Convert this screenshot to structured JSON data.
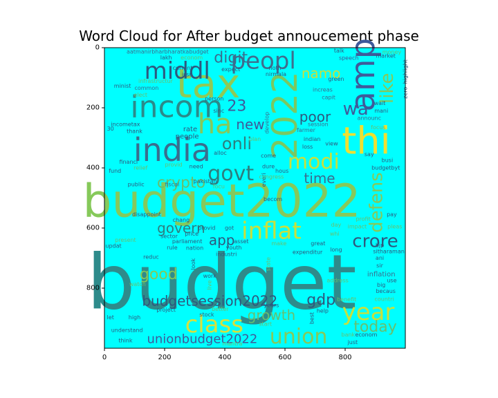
{
  "chart_data": {
    "type": "wordcloud",
    "title": "Word Cloud for After budget annoucement phase",
    "background_color": "#00ffff",
    "xlim": [
      0,
      1000
    ],
    "ylim": [
      1000,
      0
    ],
    "x_ticks": [
      0,
      200,
      400,
      600,
      800
    ],
    "y_ticks": [
      0,
      200,
      400,
      600,
      800
    ],
    "words": [
      {
        "text": "budget",
        "x": 390,
        "y": 780,
        "size": 110,
        "color": "#2e8b8b"
      },
      {
        "text": "budget2022",
        "x": 390,
        "y": 510,
        "size": 66,
        "color": "#86c95a"
      },
      {
        "text": "tax",
        "x": 345,
        "y": 120,
        "size": 58,
        "color": "#8fca55"
      },
      {
        "text": "thi",
        "x": 870,
        "y": 310,
        "size": 54,
        "color": "#f0e030"
      },
      {
        "text": "2022",
        "x": 600,
        "y": 225,
        "size": 50,
        "color": "#7ac860",
        "rotate": -90
      },
      {
        "text": "amp",
        "x": 860,
        "y": 90,
        "size": 48,
        "color": "#3f5a9a",
        "rotate": -90
      },
      {
        "text": "india",
        "x": 225,
        "y": 340,
        "size": 46,
        "color": "#3a6d8e"
      },
      {
        "text": "incom",
        "x": 240,
        "y": 198,
        "size": 44,
        "color": "#2b8a8a"
      },
      {
        "text": "ha",
        "x": 367,
        "y": 255,
        "size": 40,
        "color": "#86c95a"
      },
      {
        "text": "peopl",
        "x": 528,
        "y": 45,
        "size": 34,
        "color": "#3f6e8e"
      },
      {
        "text": "middl",
        "x": 242,
        "y": 78,
        "size": 34,
        "color": "#2e587e"
      },
      {
        "text": "govt",
        "x": 420,
        "y": 420,
        "size": 30,
        "color": "#2e7e7e"
      },
      {
        "text": "modi",
        "x": 695,
        "y": 380,
        "size": 30,
        "color": "#c8e03c"
      },
      {
        "text": "inflat",
        "x": 555,
        "y": 610,
        "size": 34,
        "color": "#c8e03c"
      },
      {
        "text": "year",
        "x": 877,
        "y": 880,
        "size": 34,
        "color": "#c8e03c"
      },
      {
        "text": "class",
        "x": 365,
        "y": 922,
        "size": 34,
        "color": "#d8e03c"
      },
      {
        "text": "union",
        "x": 645,
        "y": 962,
        "size": 30,
        "color": "#86c95a"
      },
      {
        "text": "wa",
        "x": 835,
        "y": 205,
        "size": 26,
        "color": "#3f5a9a"
      },
      {
        "text": "like",
        "x": 940,
        "y": 135,
        "size": 26,
        "color": "#86c95a",
        "rotate": -90
      },
      {
        "text": "defens",
        "x": 905,
        "y": 515,
        "size": 26,
        "color": "#86c95a",
        "rotate": -90
      },
      {
        "text": "crore",
        "x": 900,
        "y": 645,
        "size": 26,
        "color": "#2e587e"
      },
      {
        "text": "today",
        "x": 900,
        "y": 930,
        "size": 22,
        "color": "#66c070"
      },
      {
        "text": "onli",
        "x": 440,
        "y": 320,
        "size": 24,
        "color": "#2e7e7e"
      },
      {
        "text": "digit",
        "x": 420,
        "y": 35,
        "size": 22,
        "color": "#3a6d8e"
      },
      {
        "text": "namo",
        "x": 720,
        "y": 85,
        "size": 20,
        "color": "#c8e03c"
      },
      {
        "text": "poor",
        "x": 700,
        "y": 230,
        "size": 20,
        "color": "#2e587e"
      },
      {
        "text": "time",
        "x": 715,
        "y": 435,
        "size": 20,
        "color": "#3a6d8e"
      },
      {
        "text": "new",
        "x": 485,
        "y": 255,
        "size": 20,
        "color": "#3f5a9a"
      },
      {
        "text": "23",
        "x": 440,
        "y": 195,
        "size": 22,
        "color": "#3f5a9a"
      },
      {
        "text": "crypto",
        "x": 255,
        "y": 450,
        "size": 22,
        "color": "#66c070"
      },
      {
        "text": "govern",
        "x": 255,
        "y": 600,
        "size": 20,
        "color": "#2e7e7e"
      },
      {
        "text": "app",
        "x": 390,
        "y": 640,
        "size": 20,
        "color": "#2e587e"
      },
      {
        "text": "good",
        "x": 180,
        "y": 755,
        "size": 22,
        "color": "#86c95a"
      },
      {
        "text": "growth",
        "x": 555,
        "y": 890,
        "size": 20,
        "color": "#66c070"
      },
      {
        "text": "gdp",
        "x": 720,
        "y": 840,
        "size": 22,
        "color": "#2e587e"
      },
      {
        "text": "budgetsession2022",
        "x": 350,
        "y": 843,
        "size": 20,
        "color": "#2e587e"
      },
      {
        "text": "unionbudget2022",
        "x": 325,
        "y": 970,
        "size": 18,
        "color": "#3f5a9a"
      },
      {
        "text": "aatmanirbharbharatkabudget",
        "x": 210,
        "y": 14,
        "size": 8,
        "color": "#3a6d8e"
      },
      {
        "text": "speech",
        "x": 812,
        "y": 35,
        "size": 8,
        "color": "#3f5a9a"
      },
      {
        "text": "money",
        "x": 955,
        "y": 15,
        "size": 8,
        "color": "#66c070"
      },
      {
        "text": "infrastructur",
        "x": 170,
        "y": 112,
        "size": 8,
        "color": "#66c070"
      },
      {
        "text": "minist",
        "x": 60,
        "y": 128,
        "size": 8,
        "color": "#2e587e"
      },
      {
        "text": "common",
        "x": 140,
        "y": 135,
        "size": 8,
        "color": "#3a6d8e"
      },
      {
        "text": "elect",
        "x": 120,
        "y": 158,
        "size": 8,
        "color": "#66c070"
      },
      {
        "text": "lakh",
        "x": 205,
        "y": 33,
        "size": 8,
        "color": "#2e587e"
      },
      {
        "text": "current",
        "x": 260,
        "y": 68,
        "size": 8,
        "color": "#2e587e"
      },
      {
        "text": "econom",
        "x": 290,
        "y": 33,
        "size": 8,
        "color": "#66c070"
      },
      {
        "text": "issu",
        "x": 275,
        "y": 90,
        "size": 8,
        "color": "#2e587e"
      },
      {
        "text": "expect",
        "x": 420,
        "y": 72,
        "size": 8,
        "color": "#2e587e"
      },
      {
        "text": "noth",
        "x": 567,
        "y": 68,
        "size": 8,
        "color": "#2e587e"
      },
      {
        "text": "nirmala",
        "x": 570,
        "y": 88,
        "size": 8,
        "color": "#2e587e"
      },
      {
        "text": "person",
        "x": 365,
        "y": 170,
        "size": 8,
        "color": "#2e587e"
      },
      {
        "text": "sinc",
        "x": 380,
        "y": 210,
        "size": 8,
        "color": "#2e587e"
      },
      {
        "text": "increas",
        "x": 725,
        "y": 140,
        "size": 8,
        "color": "#3a6d8e"
      },
      {
        "text": "capit",
        "x": 745,
        "y": 165,
        "size": 8,
        "color": "#3a6d8e"
      },
      {
        "text": "talk",
        "x": 780,
        "y": 10,
        "size": 8,
        "color": "#2e587e"
      },
      {
        "text": "green",
        "x": 770,
        "y": 105,
        "size": 8,
        "color": "#2e587e"
      },
      {
        "text": "wait",
        "x": 915,
        "y": 185,
        "size": 8,
        "color": "#2e587e"
      },
      {
        "text": "mani",
        "x": 920,
        "y": 210,
        "size": 8,
        "color": "#2e587e"
      },
      {
        "text": "announc",
        "x": 880,
        "y": 235,
        "size": 8,
        "color": "#3a6d8e"
      },
      {
        "text": "focus",
        "x": 910,
        "y": 265,
        "size": 8,
        "color": "#66c070"
      },
      {
        "text": "session",
        "x": 710,
        "y": 255,
        "size": 8,
        "color": "#3a6d8e"
      },
      {
        "text": "farmer",
        "x": 670,
        "y": 275,
        "size": 8,
        "color": "#3a6d8e"
      },
      {
        "text": "develop",
        "x": 540,
        "y": 250,
        "size": 8,
        "color": "#3a6d8e",
        "rotate": -90
      },
      {
        "text": "thank",
        "x": 100,
        "y": 278,
        "size": 8,
        "color": "#2e587e"
      },
      {
        "text": "30",
        "x": 20,
        "y": 270,
        "size": 8,
        "color": "#2e587e"
      },
      {
        "text": "incometax",
        "x": 70,
        "y": 255,
        "size": 8,
        "color": "#2e587e"
      },
      {
        "text": "rate",
        "x": 285,
        "y": 272,
        "size": 10,
        "color": "#2e587e"
      },
      {
        "text": "people",
        "x": 275,
        "y": 297,
        "size": 10,
        "color": "#2e587e"
      },
      {
        "text": "indian",
        "x": 690,
        "y": 305,
        "size": 8,
        "color": "#2e587e"
      },
      {
        "text": "view",
        "x": 755,
        "y": 320,
        "size": 8,
        "color": "#2e587e"
      },
      {
        "text": "loss",
        "x": 675,
        "y": 330,
        "size": 8,
        "color": "#2e587e"
      },
      {
        "text": "say",
        "x": 880,
        "y": 355,
        "size": 8,
        "color": "#2e587e"
      },
      {
        "text": "busi",
        "x": 940,
        "y": 375,
        "size": 8,
        "color": "#2e587e"
      },
      {
        "text": "budgetbyt",
        "x": 935,
        "y": 400,
        "size": 8,
        "color": "#2e587e"
      },
      {
        "text": "financi",
        "x": 80,
        "y": 380,
        "size": 8,
        "color": "#2e587e"
      },
      {
        "text": "relief",
        "x": 120,
        "y": 400,
        "size": 8,
        "color": "#66c070"
      },
      {
        "text": "fund",
        "x": 35,
        "y": 410,
        "size": 8,
        "color": "#2e587e"
      },
      {
        "text": "public",
        "x": 105,
        "y": 455,
        "size": 8,
        "color": "#2e587e"
      },
      {
        "text": "fiscal",
        "x": 225,
        "y": 455,
        "size": 8,
        "color": "#3a6d8e"
      },
      {
        "text": "need",
        "x": 305,
        "y": 395,
        "size": 8,
        "color": "#2e587e"
      },
      {
        "text": "provid",
        "x": 230,
        "y": 390,
        "size": 8,
        "color": "#66c070"
      },
      {
        "text": "alloc",
        "x": 385,
        "y": 350,
        "size": 8,
        "color": "#2e587e"
      },
      {
        "text": "plan",
        "x": 500,
        "y": 305,
        "size": 8,
        "color": "#66c070"
      },
      {
        "text": "come",
        "x": 545,
        "y": 360,
        "size": 8,
        "color": "#2e587e"
      },
      {
        "text": "dure",
        "x": 545,
        "y": 395,
        "size": 8,
        "color": "#2e587e"
      },
      {
        "text": "hous",
        "x": 590,
        "y": 410,
        "size": 8,
        "color": "#2e587e"
      },
      {
        "text": "everi",
        "x": 530,
        "y": 440,
        "size": 8,
        "color": "#2e587e",
        "rotate": -90
      },
      {
        "text": "congress",
        "x": 555,
        "y": 430,
        "size": 8,
        "color": "#66c070"
      },
      {
        "text": "pakistan",
        "x": 335,
        "y": 445,
        "size": 8,
        "color": "#2e587e"
      },
      {
        "text": "focu",
        "x": 380,
        "y": 462,
        "size": 8,
        "color": "#66c070"
      },
      {
        "text": "becom",
        "x": 560,
        "y": 505,
        "size": 8,
        "color": "#2e587e"
      },
      {
        "text": "disappoint",
        "x": 140,
        "y": 555,
        "size": 8,
        "color": "#2e587e"
      },
      {
        "text": "chang",
        "x": 255,
        "y": 573,
        "size": 8,
        "color": "#2e587e"
      },
      {
        "text": "provid",
        "x": 340,
        "y": 600,
        "size": 8,
        "color": "#2e587e"
      },
      {
        "text": "got",
        "x": 415,
        "y": 600,
        "size": 8,
        "color": "#2e587e"
      },
      {
        "text": "profit",
        "x": 860,
        "y": 570,
        "size": 8,
        "color": "#66c070"
      },
      {
        "text": "pay",
        "x": 955,
        "y": 555,
        "size": 8,
        "color": "#2e587e"
      },
      {
        "text": "day",
        "x": 770,
        "y": 590,
        "size": 8,
        "color": "#66c070"
      },
      {
        "text": "impact",
        "x": 840,
        "y": 595,
        "size": 8,
        "color": "#66c070"
      },
      {
        "text": "pleas",
        "x": 965,
        "y": 595,
        "size": 8,
        "color": "#66c070"
      },
      {
        "text": "whi",
        "x": 765,
        "y": 620,
        "size": 8,
        "color": "#66c070"
      },
      {
        "text": "price",
        "x": 290,
        "y": 620,
        "size": 8,
        "color": "#2e587e"
      },
      {
        "text": "sector",
        "x": 215,
        "y": 628,
        "size": 8,
        "color": "#2e587e"
      },
      {
        "text": "parliament",
        "x": 275,
        "y": 645,
        "size": 8,
        "color": "#2e587e"
      },
      {
        "text": "asset",
        "x": 455,
        "y": 645,
        "size": 8,
        "color": "#2e587e"
      },
      {
        "text": "present",
        "x": 70,
        "y": 640,
        "size": 8,
        "color": "#66c070"
      },
      {
        "text": "updat",
        "x": 30,
        "y": 660,
        "size": 8,
        "color": "#2e587e"
      },
      {
        "text": "rule",
        "x": 225,
        "y": 665,
        "size": 8,
        "color": "#2e587e"
      },
      {
        "text": "nation",
        "x": 300,
        "y": 667,
        "size": 8,
        "color": "#2e587e"
      },
      {
        "text": "youth",
        "x": 430,
        "y": 665,
        "size": 8,
        "color": "#2e587e"
      },
      {
        "text": "make",
        "x": 580,
        "y": 652,
        "size": 8,
        "color": "#66c070"
      },
      {
        "text": "great",
        "x": 710,
        "y": 652,
        "size": 8,
        "color": "#2e587e"
      },
      {
        "text": "bjp",
        "x": 915,
        "y": 658,
        "size": 8,
        "color": "#2e587e"
      },
      {
        "text": "sitharaman",
        "x": 945,
        "y": 678,
        "size": 8,
        "color": "#2e587e"
      },
      {
        "text": "long",
        "x": 770,
        "y": 672,
        "size": 8,
        "color": "#2e587e"
      },
      {
        "text": "expenditur",
        "x": 675,
        "y": 680,
        "size": 8,
        "color": "#2e587e"
      },
      {
        "text": "industri",
        "x": 405,
        "y": 687,
        "size": 8,
        "color": "#2e587e"
      },
      {
        "text": "reduc",
        "x": 155,
        "y": 697,
        "size": 8,
        "color": "#2e587e"
      },
      {
        "text": "ani",
        "x": 915,
        "y": 700,
        "size": 8,
        "color": "#2e587e"
      },
      {
        "text": "sir",
        "x": 915,
        "y": 725,
        "size": 8,
        "color": "#2e587e"
      },
      {
        "text": "inflation",
        "x": 920,
        "y": 755,
        "size": 10,
        "color": "#3a6d8e"
      },
      {
        "text": "use",
        "x": 955,
        "y": 775,
        "size": 8,
        "color": "#2e587e"
      },
      {
        "text": "big",
        "x": 920,
        "y": 790,
        "size": 8,
        "color": "#2e587e"
      },
      {
        "text": "becaus",
        "x": 935,
        "y": 810,
        "size": 8,
        "color": "#2e587e"
      },
      {
        "text": "countri",
        "x": 930,
        "y": 837,
        "size": 8,
        "color": "#66c070"
      },
      {
        "text": "benefit",
        "x": 805,
        "y": 838,
        "size": 8,
        "color": "#66c070"
      },
      {
        "text": "address",
        "x": 775,
        "y": 775,
        "size": 8,
        "color": "#66c070"
      },
      {
        "text": "work",
        "x": 350,
        "y": 760,
        "size": 8,
        "color": "#2e587e"
      },
      {
        "text": "watch",
        "x": 110,
        "y": 787,
        "size": 8,
        "color": "#66c070"
      },
      {
        "text": "better",
        "x": 385,
        "y": 870,
        "size": 8,
        "color": "#66c070"
      },
      {
        "text": "years",
        "x": 555,
        "y": 858,
        "size": 8,
        "color": "#2e587e"
      },
      {
        "text": "project",
        "x": 205,
        "y": 872,
        "size": 8,
        "color": "#2e587e"
      },
      {
        "text": "stock",
        "x": 340,
        "y": 888,
        "size": 8,
        "color": "#2e587e"
      },
      {
        "text": "help",
        "x": 725,
        "y": 876,
        "size": 8,
        "color": "#2e587e"
      },
      {
        "text": "high",
        "x": 100,
        "y": 898,
        "size": 8,
        "color": "#2e587e"
      },
      {
        "text": "let",
        "x": 20,
        "y": 898,
        "size": 8,
        "color": "#2e587e"
      },
      {
        "text": "start",
        "x": 535,
        "y": 920,
        "size": 8,
        "color": "#66c070"
      },
      {
        "text": "understand",
        "x": 75,
        "y": 940,
        "size": 8,
        "color": "#2e587e"
      },
      {
        "text": "market",
        "x": 935,
        "y": 28,
        "size": 8,
        "color": "#2e587e"
      },
      {
        "text": "econom",
        "x": 870,
        "y": 955,
        "size": 8,
        "color": "#2e587e"
      },
      {
        "text": "bank",
        "x": 810,
        "y": 955,
        "size": 8,
        "color": "#66c070"
      },
      {
        "text": "think",
        "x": 70,
        "y": 975,
        "size": 8,
        "color": "#2e587e"
      },
      {
        "text": "mantra",
        "x": 425,
        "y": 985,
        "size": 8,
        "color": "#66c070"
      },
      {
        "text": "just",
        "x": 825,
        "y": 980,
        "size": 8,
        "color": "#2e587e"
      },
      {
        "text": "best",
        "x": 690,
        "y": 900,
        "size": 8,
        "color": "#2e587e",
        "rotate": -90
      },
      {
        "text": "look",
        "x": 295,
        "y": 720,
        "size": 8,
        "color": "#2e587e",
        "rotate": -90
      },
      {
        "text": "live",
        "x": 350,
        "y": 790,
        "size": 8,
        "color": "#66c070",
        "rotate": -90
      },
      {
        "text": "state",
        "x": 545,
        "y": 720,
        "size": 8,
        "color": "#66c070",
        "rotate": -90
      },
      {
        "text": "zero",
        "x": 1000,
        "y": 150,
        "size": 8,
        "color": "#2e587e",
        "rotate": -90
      },
      {
        "text": "highlight",
        "x": 1000,
        "y": 80,
        "size": 8,
        "color": "#2e587e",
        "rotate": -90
      }
    ]
  }
}
